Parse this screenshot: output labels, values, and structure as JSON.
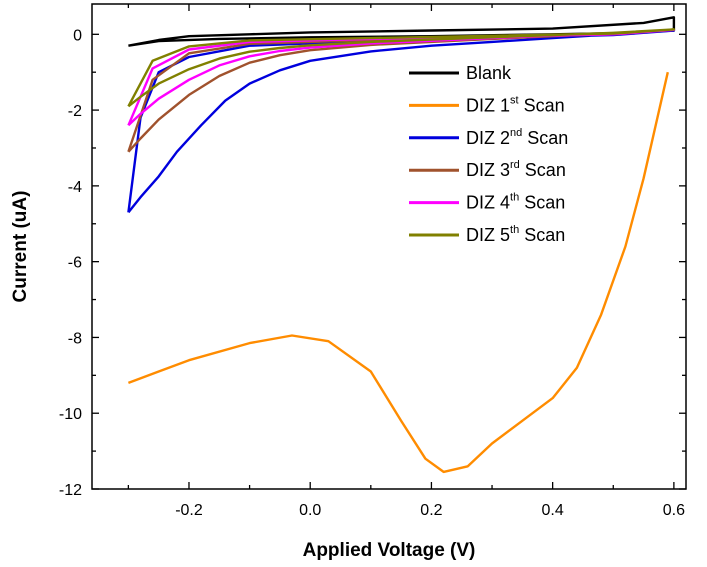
{
  "chart_data": {
    "type": "line",
    "xlabel": "Applied Voltage (V)",
    "ylabel": "Current (uA)",
    "xlim": [
      -0.36,
      0.62
    ],
    "ylim": [
      -12,
      0.8
    ],
    "x_ticks": [
      -0.2,
      0.0,
      0.2,
      0.4,
      0.6
    ],
    "x_tick_labels": [
      "-0.2",
      "0.0",
      "0.2",
      "0.4",
      "0.6"
    ],
    "y_ticks": [
      0,
      -2,
      -4,
      -6,
      -8,
      -10,
      -12
    ],
    "y_tick_labels": [
      "0",
      "-2",
      "-4",
      "-6",
      "-8",
      "-10",
      "-12"
    ],
    "grid": false,
    "legend_position": "top-right",
    "series": [
      {
        "name": "Blank",
        "name_main": "Blank",
        "name_sup": "",
        "name_tail": "",
        "color": "#000000",
        "points": [
          [
            -0.3,
            -0.3
          ],
          [
            -0.25,
            -0.15
          ],
          [
            -0.2,
            -0.05
          ],
          [
            -0.1,
            0.0
          ],
          [
            0.0,
            0.05
          ],
          [
            0.2,
            0.1
          ],
          [
            0.4,
            0.15
          ],
          [
            0.55,
            0.3
          ],
          [
            0.6,
            0.45
          ],
          [
            0.6,
            0.1
          ],
          [
            0.5,
            0.03
          ],
          [
            0.4,
            0.0
          ],
          [
            0.2,
            -0.05
          ],
          [
            0.0,
            -0.08
          ],
          [
            -0.15,
            -0.12
          ],
          [
            -0.25,
            -0.18
          ],
          [
            -0.3,
            -0.3
          ]
        ]
      },
      {
        "name": "DIZ 1st Scan",
        "name_main": "DIZ 1",
        "name_sup": "st",
        "name_tail": " Scan",
        "color": "#ff8c00",
        "points": [
          [
            -0.3,
            -9.2
          ],
          [
            -0.25,
            -8.9
          ],
          [
            -0.2,
            -8.6
          ],
          [
            -0.1,
            -8.15
          ],
          [
            -0.03,
            -7.95
          ],
          [
            0.03,
            -8.1
          ],
          [
            0.1,
            -8.9
          ],
          [
            0.15,
            -10.2
          ],
          [
            0.19,
            -11.2
          ],
          [
            0.22,
            -11.55
          ],
          [
            0.26,
            -11.4
          ],
          [
            0.3,
            -10.8
          ],
          [
            0.35,
            -10.2
          ],
          [
            0.4,
            -9.6
          ],
          [
            0.44,
            -8.8
          ],
          [
            0.48,
            -7.4
          ],
          [
            0.52,
            -5.6
          ],
          [
            0.55,
            -3.8
          ],
          [
            0.59,
            -1.0
          ]
        ]
      },
      {
        "name": "DIZ 2nd Scan",
        "name_main": "DIZ 2",
        "name_sup": "nd",
        "name_tail": " Scan",
        "color": "#0000dd",
        "points": [
          [
            -0.3,
            -4.7
          ],
          [
            -0.28,
            -4.3
          ],
          [
            -0.25,
            -3.75
          ],
          [
            -0.22,
            -3.1
          ],
          [
            -0.18,
            -2.4
          ],
          [
            -0.14,
            -1.75
          ],
          [
            -0.1,
            -1.3
          ],
          [
            -0.05,
            -0.95
          ],
          [
            0.0,
            -0.7
          ],
          [
            0.1,
            -0.45
          ],
          [
            0.2,
            -0.3
          ],
          [
            0.3,
            -0.2
          ],
          [
            0.4,
            -0.1
          ],
          [
            0.5,
            0.0
          ],
          [
            0.6,
            0.1
          ],
          [
            0.5,
            -0.02
          ],
          [
            0.3,
            -0.1
          ],
          [
            0.1,
            -0.18
          ],
          [
            -0.1,
            -0.3
          ],
          [
            -0.2,
            -0.6
          ],
          [
            -0.25,
            -1.0
          ],
          [
            -0.28,
            -2.2
          ],
          [
            -0.3,
            -4.7
          ]
        ]
      },
      {
        "name": "DIZ 3rd Scan",
        "name_main": "DIZ 3",
        "name_sup": "rd",
        "name_tail": " Scan",
        "color": "#a0522d",
        "points": [
          [
            -0.3,
            -3.1
          ],
          [
            -0.28,
            -2.75
          ],
          [
            -0.25,
            -2.25
          ],
          [
            -0.2,
            -1.6
          ],
          [
            -0.15,
            -1.1
          ],
          [
            -0.1,
            -0.75
          ],
          [
            -0.05,
            -0.55
          ],
          [
            0.0,
            -0.42
          ],
          [
            0.1,
            -0.28
          ],
          [
            0.2,
            -0.2
          ],
          [
            0.3,
            -0.12
          ],
          [
            0.4,
            -0.05
          ],
          [
            0.5,
            0.02
          ],
          [
            0.6,
            0.12
          ],
          [
            0.5,
            0.0
          ],
          [
            0.3,
            -0.08
          ],
          [
            0.1,
            -0.15
          ],
          [
            -0.1,
            -0.25
          ],
          [
            -0.2,
            -0.5
          ],
          [
            -0.26,
            -1.2
          ],
          [
            -0.3,
            -3.1
          ]
        ]
      },
      {
        "name": "DIZ 4th Scan",
        "name_main": "DIZ 4",
        "name_sup": "th",
        "name_tail": " Scan",
        "color": "#ff00ff",
        "points": [
          [
            -0.3,
            -2.4
          ],
          [
            -0.28,
            -2.1
          ],
          [
            -0.25,
            -1.7
          ],
          [
            -0.2,
            -1.2
          ],
          [
            -0.15,
            -0.82
          ],
          [
            -0.1,
            -0.58
          ],
          [
            -0.05,
            -0.44
          ],
          [
            0.0,
            -0.35
          ],
          [
            0.1,
            -0.24
          ],
          [
            0.2,
            -0.17
          ],
          [
            0.3,
            -0.1
          ],
          [
            0.4,
            -0.03
          ],
          [
            0.5,
            0.03
          ],
          [
            0.6,
            0.12
          ],
          [
            0.5,
            0.0
          ],
          [
            0.3,
            -0.06
          ],
          [
            0.1,
            -0.12
          ],
          [
            -0.1,
            -0.2
          ],
          [
            -0.2,
            -0.4
          ],
          [
            -0.26,
            -0.9
          ],
          [
            -0.3,
            -2.4
          ]
        ]
      },
      {
        "name": "DIZ 5th Scan",
        "name_main": "DIZ 5",
        "name_sup": "th",
        "name_tail": " Scan",
        "color": "#808000",
        "points": [
          [
            -0.3,
            -1.9
          ],
          [
            -0.28,
            -1.65
          ],
          [
            -0.25,
            -1.3
          ],
          [
            -0.2,
            -0.92
          ],
          [
            -0.15,
            -0.64
          ],
          [
            -0.1,
            -0.46
          ],
          [
            -0.05,
            -0.36
          ],
          [
            0.0,
            -0.29
          ],
          [
            0.1,
            -0.2
          ],
          [
            0.2,
            -0.14
          ],
          [
            0.3,
            -0.08
          ],
          [
            0.4,
            -0.02
          ],
          [
            0.5,
            0.04
          ],
          [
            0.6,
            0.13
          ],
          [
            0.5,
            0.02
          ],
          [
            0.3,
            -0.04
          ],
          [
            0.1,
            -0.1
          ],
          [
            -0.1,
            -0.16
          ],
          [
            -0.2,
            -0.32
          ],
          [
            -0.26,
            -0.7
          ],
          [
            -0.3,
            -1.9
          ]
        ]
      }
    ]
  }
}
